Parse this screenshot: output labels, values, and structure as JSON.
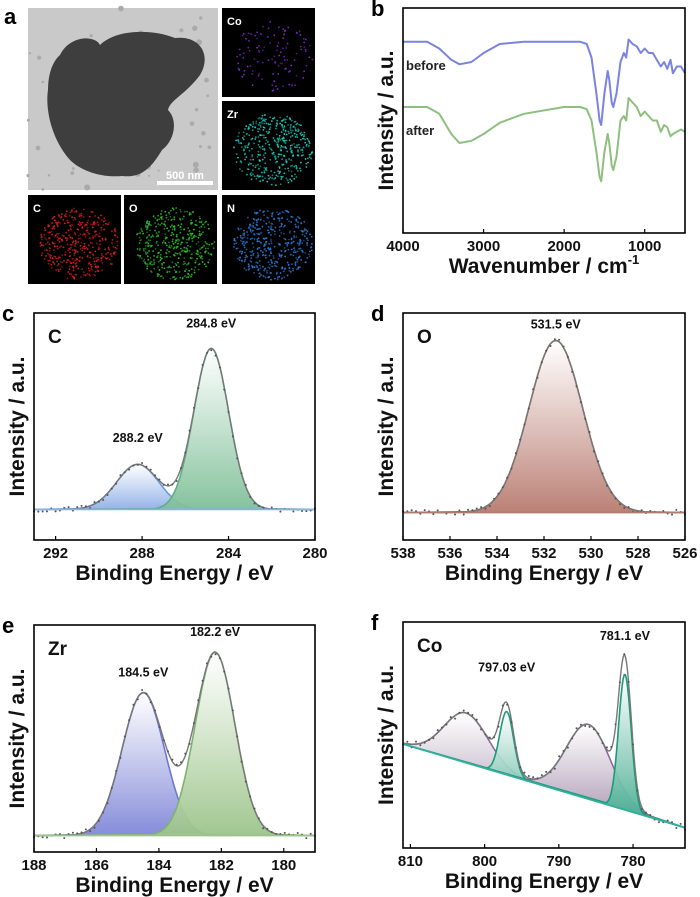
{
  "panel_a": {
    "letter": "a",
    "scale_bar": "500 nm",
    "maps": [
      {
        "element": "Co",
        "color": "#8a2be2"
      },
      {
        "element": "Zr",
        "color": "#20d0c0"
      },
      {
        "element": "C",
        "color": "#e02020"
      },
      {
        "element": "O",
        "color": "#30c030"
      },
      {
        "element": "N",
        "color": "#2a7fe0"
      }
    ]
  },
  "chart_data": [
    {
      "letter": "b",
      "type": "line",
      "xlabel": "Wavenumber / cm",
      "xlabel_sup": "-1",
      "ylabel": "Intensity / a.u.",
      "xlim": [
        4000,
        500
      ],
      "ylim": [
        0,
        1
      ],
      "xticks": [
        4000,
        3000,
        2000,
        1000
      ],
      "series": [
        {
          "name": "before",
          "color": "#7b83e0",
          "x": [
            4000,
            3700,
            3550,
            3400,
            3300,
            3150,
            3000,
            2800,
            2500,
            2000,
            1800,
            1720,
            1660,
            1600,
            1560,
            1540,
            1500,
            1460,
            1440,
            1410,
            1390,
            1350,
            1300,
            1260,
            1230,
            1200,
            1150,
            1100,
            1050,
            1000,
            950,
            900,
            850,
            800,
            760,
            720,
            680,
            650,
            600,
            550,
            500
          ],
          "y": [
            0.85,
            0.85,
            0.82,
            0.77,
            0.75,
            0.76,
            0.8,
            0.84,
            0.85,
            0.85,
            0.85,
            0.84,
            0.78,
            0.62,
            0.5,
            0.48,
            0.62,
            0.72,
            0.68,
            0.58,
            0.56,
            0.62,
            0.76,
            0.8,
            0.78,
            0.86,
            0.84,
            0.83,
            0.8,
            0.82,
            0.8,
            0.8,
            0.77,
            0.74,
            0.76,
            0.73,
            0.77,
            0.71,
            0.74,
            0.74,
            0.71
          ]
        },
        {
          "name": "after",
          "color": "#8fbf7f",
          "x": [
            4000,
            3700,
            3550,
            3400,
            3300,
            3150,
            3000,
            2800,
            2500,
            2000,
            1800,
            1720,
            1660,
            1600,
            1560,
            1540,
            1500,
            1460,
            1440,
            1410,
            1390,
            1350,
            1300,
            1260,
            1230,
            1200,
            1150,
            1100,
            1050,
            1000,
            950,
            900,
            850,
            800,
            760,
            720,
            680,
            650,
            600,
            550,
            500
          ],
          "y": [
            0.56,
            0.56,
            0.53,
            0.44,
            0.4,
            0.41,
            0.44,
            0.49,
            0.53,
            0.56,
            0.56,
            0.55,
            0.5,
            0.36,
            0.25,
            0.23,
            0.36,
            0.44,
            0.4,
            0.3,
            0.28,
            0.34,
            0.5,
            0.52,
            0.5,
            0.6,
            0.58,
            0.56,
            0.52,
            0.54,
            0.52,
            0.5,
            0.5,
            0.45,
            0.48,
            0.47,
            0.43,
            0.44,
            0.45,
            0.46,
            0.45
          ]
        }
      ]
    },
    {
      "letter": "c",
      "element": "C",
      "type": "xps",
      "xlabel": "Binding Energy / eV",
      "ylabel": "Intensity / a.u.",
      "xlim": [
        293,
        280
      ],
      "ylim": [
        -0.19,
        1.22
      ],
      "xticks": [
        292,
        288,
        284,
        280
      ],
      "baseline": {
        "left": 0,
        "right": 0,
        "color": "#8ab0e6"
      },
      "components": [
        {
          "center": 288.2,
          "height": 0.28,
          "fwhm": 2.3,
          "fill": "#8fb0e6",
          "stroke": "#6f9be0"
        },
        {
          "center": 284.8,
          "height": 1.0,
          "fwhm": 1.9,
          "fill": "#7fbf98",
          "stroke": "#5fae88"
        }
      ],
      "annotations": [
        {
          "text": "288.2 eV",
          "x": 288.2,
          "y": 0.42
        },
        {
          "text": "284.8 eV",
          "x": 284.8,
          "y": 1.13
        }
      ]
    },
    {
      "letter": "d",
      "element": "O",
      "type": "xps",
      "xlabel": "Binding Energy / eV",
      "ylabel": "Intensity / a.u.",
      "xlim": [
        538,
        526
      ],
      "ylim": [
        -0.16,
        1.16
      ],
      "xticks": [
        538,
        536,
        534,
        532,
        530,
        528,
        526
      ],
      "baseline": {
        "left": 0,
        "right": 0,
        "color": "#b07a70"
      },
      "components": [
        {
          "center": 531.5,
          "height": 1.0,
          "fwhm": 2.7,
          "fill": "#b87a6e",
          "stroke": "#a06a5e"
        }
      ],
      "annotations": [
        {
          "text": "531.5 eV",
          "x": 531.5,
          "y": 1.07
        }
      ]
    },
    {
      "letter": "e",
      "element": "Zr",
      "type": "xps",
      "xlabel": "Binding Energy / eV",
      "ylabel": "Intensity / a.u.",
      "xlim": [
        188,
        179
      ],
      "ylim": [
        -0.09,
        1.15
      ],
      "xticks": [
        188,
        186,
        184,
        182,
        180
      ],
      "baseline": {
        "left": 0,
        "right": 0,
        "color": "#9cc48a"
      },
      "components": [
        {
          "center": 184.5,
          "height": 0.78,
          "fwhm": 1.6,
          "fill": "#7f86d8",
          "stroke": "#6f78d0"
        },
        {
          "center": 182.2,
          "height": 1.0,
          "fwhm": 1.5,
          "fill": "#9cc48a",
          "stroke": "#80b070"
        }
      ],
      "annotations": [
        {
          "text": "184.5 eV",
          "x": 184.5,
          "y": 0.87
        },
        {
          "text": "182.2 eV",
          "x": 182.2,
          "y": 1.09
        }
      ]
    },
    {
      "letter": "f",
      "element": "Co",
      "type": "xps",
      "xlabel": "Binding Energy / eV",
      "ylabel": "Intensity / a.u.",
      "xlim": [
        811,
        773
      ],
      "ylim": [
        0,
        1
      ],
      "xticks": [
        810,
        800,
        790,
        780
      ],
      "baseline": {
        "left": 0.46,
        "right": 0.09,
        "color": "#2fb09a"
      },
      "components": [
        {
          "center": 802.5,
          "height": 0.22,
          "fwhm": 7,
          "fill": "#a08aa8",
          "stroke": "#8a6a9a"
        },
        {
          "center": 797.03,
          "height": 0.28,
          "fwhm": 2.2,
          "fill": "#3aa88a",
          "stroke": "#1e9a7a"
        },
        {
          "center": 786,
          "height": 0.33,
          "fwhm": 7,
          "fill": "#a08aa8",
          "stroke": "#8a6a9a"
        },
        {
          "center": 781.1,
          "height": 0.6,
          "fwhm": 2.0,
          "fill": "#3aa88a",
          "stroke": "#1e9a7a"
        }
      ],
      "annotations": [
        {
          "text": "797.03 eV",
          "x": 797.03,
          "y": 0.78
        },
        {
          "text": "781.1 eV",
          "x": 781.1,
          "y": 0.92
        }
      ]
    }
  ]
}
